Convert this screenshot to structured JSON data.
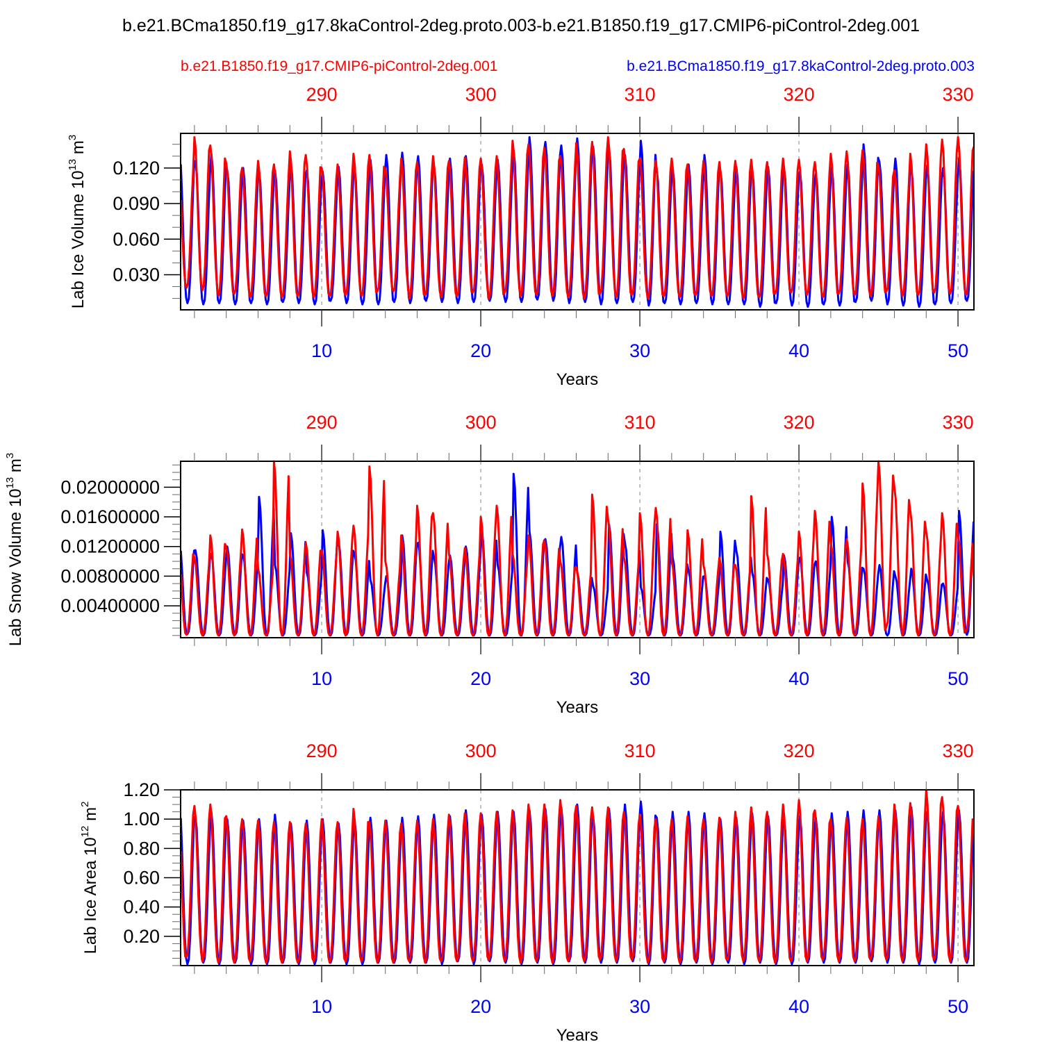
{
  "title": "b.e21.BCma1850.f19_g17.8kaControl-2deg.proto.003-b.e21.B1850.f19_g17.CMIP6-piControl-2deg.001",
  "legend": {
    "left": {
      "label": "b.e21.B1850.f19_g17.CMIP6-piControl-2deg.001",
      "color": "#ff0000"
    },
    "right": {
      "label": "b.e21.BCma1850.f19_g17.8kaControl-2deg.proto.003",
      "color": "#0000ff"
    }
  },
  "colors": {
    "case_red": "#ff0000",
    "case_blue": "#0000ff",
    "axis": "#000000",
    "grid": "#999999"
  },
  "chart_data": [
    {
      "type": "line",
      "title": "",
      "xlabel": "Years",
      "ylabel": "Lab Ice Volume 10^13 m^3",
      "ylabel_parts": {
        "main": "Lab Ice Volume 10",
        "exp": "13",
        "unit": " m",
        "unit_exp": "3"
      },
      "xlim": [
        1.13,
        51.0
      ],
      "ylim": [
        0.0004,
        0.1492
      ],
      "x_ticks_bottom": [
        10,
        20,
        30,
        40,
        50
      ],
      "x_ticks_top": [
        290,
        300,
        310,
        320,
        330
      ],
      "x_top_offset": 280,
      "y_ticks": [
        0.03,
        0.06,
        0.09,
        0.12
      ],
      "y_tick_labels": [
        "0.030",
        "0.060",
        "0.090",
        "0.120"
      ],
      "y_minor_step": 0.01,
      "grid": "dashed vertical at major x ticks",
      "series": [
        {
          "name": "b.e21.BCma1850.f19_g17.8kaControl-2deg.proto.003",
          "color": "#0000ff",
          "peaks": [
            0.134,
            0.126,
            0.132,
            0.118,
            0.12,
            0.117,
            0.118,
            0.124,
            0.118,
            0.117,
            0.121,
            0.12,
            0.127,
            0.131,
            0.133,
            0.13,
            0.121,
            0.128,
            0.13,
            0.123,
            0.127,
            0.135,
            0.146,
            0.142,
            0.139,
            0.145,
            0.138,
            0.136,
            0.131,
            0.143,
            0.118,
            0.12,
            0.123,
            0.131,
            0.118,
            0.121,
            0.118,
            0.121,
            0.12,
            0.117,
            0.115,
            0.12,
            0.123,
            0.14,
            0.125,
            0.128,
            0.12,
            0.122,
            0.12,
            0.128,
            0.135
          ],
          "troughs": [
            0.007,
            0.006,
            0.005,
            0.006,
            0.005,
            0.006,
            0.005,
            0.007,
            0.006,
            0.005,
            0.008,
            0.006,
            0.005,
            0.005,
            0.007,
            0.006,
            0.008,
            0.007,
            0.006,
            0.007,
            0.008,
            0.007,
            0.007,
            0.009,
            0.008,
            0.006,
            0.007,
            0.005,
            0.006,
            0.007,
            0.004,
            0.006,
            0.005,
            0.006,
            0.005,
            0.005,
            0.005,
            0.003,
            0.006,
            0.004,
            0.003,
            0.005,
            0.004,
            0.007,
            0.008,
            0.005,
            0.004,
            0.003,
            0.005,
            0.006,
            0.008
          ]
        },
        {
          "name": "b.e21.B1850.f19_g17.CMIP6-piControl-2deg.001",
          "color": "#ff0000",
          "peaks": [
            0.126,
            0.146,
            0.139,
            0.124,
            0.12,
            0.126,
            0.123,
            0.134,
            0.131,
            0.12,
            0.123,
            0.132,
            0.131,
            0.119,
            0.128,
            0.125,
            0.13,
            0.126,
            0.129,
            0.128,
            0.13,
            0.143,
            0.14,
            0.137,
            0.13,
            0.141,
            0.142,
            0.146,
            0.136,
            0.128,
            0.126,
            0.128,
            0.123,
            0.126,
            0.125,
            0.126,
            0.127,
            0.125,
            0.128,
            0.127,
            0.125,
            0.132,
            0.134,
            0.135,
            0.122,
            0.118,
            0.132,
            0.14,
            0.144,
            0.146,
            0.138
          ],
          "troughs": [
            0.02,
            0.019,
            0.017,
            0.012,
            0.014,
            0.011,
            0.012,
            0.011,
            0.012,
            0.011,
            0.012,
            0.013,
            0.012,
            0.016,
            0.016,
            0.01,
            0.013,
            0.011,
            0.012,
            0.015,
            0.01,
            0.015,
            0.012,
            0.013,
            0.012,
            0.011,
            0.01,
            0.014,
            0.011,
            0.013,
            0.01,
            0.012,
            0.011,
            0.013,
            0.012,
            0.012,
            0.01,
            0.011,
            0.014,
            0.015,
            0.013,
            0.011,
            0.014,
            0.013,
            0.012,
            0.016,
            0.012,
            0.013,
            0.015,
            0.014,
            0.013
          ]
        }
      ]
    },
    {
      "type": "line",
      "title": "",
      "xlabel": "Years",
      "ylabel": "Lab Snow Volume 10^13 m^3",
      "ylabel_parts": {
        "main": "Lab Snow Volume 10",
        "exp": "13",
        "unit": " m",
        "unit_exp": "3"
      },
      "xlim": [
        1.13,
        51.0
      ],
      "ylim": [
        -0.0003,
        0.0235
      ],
      "x_ticks_bottom": [
        10,
        20,
        30,
        40,
        50
      ],
      "x_ticks_top": [
        290,
        300,
        310,
        320,
        330
      ],
      "x_top_offset": 280,
      "y_ticks": [
        0.004,
        0.008,
        0.012,
        0.016,
        0.02
      ],
      "y_tick_labels": [
        "0.00400000",
        "0.00800000",
        "0.01200000",
        "0.01600000",
        "0.02000000"
      ],
      "y_minor_step": 0.001,
      "grid": "dashed vertical at major x ticks",
      "series": [
        {
          "name": "b.e21.BCma1850.f19_g17.8kaControl-2deg.proto.003",
          "color": "#0000ff",
          "peaks": [
            0.0125,
            0.0115,
            0.011,
            0.012,
            0.0108,
            0.0187,
            0.0095,
            0.0138,
            0.0085,
            0.0142,
            0.0125,
            0.011,
            0.0075,
            0.008,
            0.0135,
            0.0125,
            0.0105,
            0.0108,
            0.012,
            0.014,
            0.0095,
            0.0218,
            0.014,
            0.013,
            0.0133,
            0.0085,
            0.0067,
            0.015,
            0.0125,
            0.0065,
            0.015,
            0.0105,
            0.0087,
            0.008,
            0.014,
            0.0115,
            0.0085,
            0.0075,
            0.0108,
            0.0105,
            0.01,
            0.016,
            0.01,
            0.009,
            0.0095,
            0.008,
            0.009,
            0.0075,
            0.007,
            0.0168,
            0.006
          ],
          "troughs": [
            0.0,
            0.0002,
            0.0,
            0.0,
            0.0001,
            0.0,
            0.0,
            0.0,
            0.0,
            0.0,
            0.0,
            0.0001,
            0.0,
            0.0,
            0.0,
            0.0,
            0.0,
            0.0,
            0.0,
            0.0,
            0.0,
            0.0,
            0.0,
            0.0,
            0.0,
            0.0,
            0.0,
            0.0,
            0.0,
            0.0,
            0.0,
            0.0,
            0.0,
            0.0,
            0.0,
            0.0,
            0.0,
            0.0,
            0.0,
            0.0,
            0.0,
            0.0,
            0.0,
            0.0,
            0.0,
            0.0,
            0.0,
            0.0,
            0.0,
            0.0,
            0.0001
          ]
        },
        {
          "name": "b.e21.B1850.f19_g17.CMIP6-piControl-2deg.001",
          "color": "#ff0000",
          "peaks": [
            0.012,
            0.0105,
            0.0135,
            0.012,
            0.0143,
            0.009,
            0.0235,
            0.011,
            0.0125,
            0.0115,
            0.014,
            0.0148,
            0.0228,
            0.01,
            0.0135,
            0.0175,
            0.0165,
            0.011,
            0.0118,
            0.016,
            0.0175,
            0.011,
            0.0135,
            0.0128,
            0.01,
            0.0092,
            0.019,
            0.0157,
            0.0105,
            0.0165,
            0.0172,
            0.01,
            0.0142,
            0.0095,
            0.0105,
            0.0095,
            0.0188,
            0.011,
            0.011,
            0.014,
            0.0168,
            0.0125,
            0.013,
            0.0205,
            0.0235,
            0.02,
            0.0168,
            0.014,
            0.0165,
            0.0135,
            0.008
          ],
          "troughs": [
            0.0,
            0.0001,
            0.0,
            0.0,
            0.0,
            0.0,
            0.0,
            0.0,
            0.0,
            0.0,
            0.0,
            0.0,
            0.0,
            0.0,
            0.0,
            0.0,
            0.0,
            0.0,
            0.0,
            0.0,
            0.0,
            0.0,
            0.0,
            0.0,
            0.0,
            0.0,
            0.0,
            0.0,
            0.0,
            0.0,
            0.0,
            0.0,
            0.0,
            0.0,
            0.0,
            0.0,
            0.0,
            0.0,
            0.0,
            0.0,
            0.0,
            0.0,
            0.0,
            0.0,
            0.0,
            0.0012,
            0.0,
            0.0,
            0.0,
            0.0,
            0.0006
          ]
        }
      ]
    },
    {
      "type": "line",
      "title": "",
      "xlabel": "Years",
      "ylabel": "Lab Ice Area 10^12 m^2",
      "ylabel_parts": {
        "main": "Lab Ice Area 10",
        "exp": "12",
        "unit": " m",
        "unit_exp": "2"
      },
      "xlim": [
        1.13,
        51.0
      ],
      "ylim": [
        0.0,
        1.2
      ],
      "x_ticks_bottom": [
        10,
        20,
        30,
        40,
        50
      ],
      "x_ticks_top": [
        290,
        300,
        310,
        320,
        330
      ],
      "x_top_offset": 280,
      "y_ticks": [
        0.2,
        0.4,
        0.6,
        0.8,
        1.0,
        1.2
      ],
      "y_tick_labels": [
        "0.20",
        "0.40",
        "0.60",
        "0.80",
        "1.00",
        "1.20"
      ],
      "y_minor_step": 0.05,
      "grid": "dashed vertical at major x ticks",
      "series": [
        {
          "name": "b.e21.BCma1850.f19_g17.8kaControl-2deg.proto.003",
          "color": "#0000ff",
          "peaks": [
            1.1,
            1.02,
            1.05,
            1.0,
            0.99,
            1.0,
            1.03,
            0.97,
            0.99,
            1.0,
            0.97,
            1.0,
            1.01,
            0.99,
            1.01,
            1.02,
            1.03,
            1.02,
            1.06,
            1.03,
            1.05,
            1.05,
            1.06,
            1.07,
            1.08,
            1.1,
            1.02,
            1.07,
            1.1,
            1.12,
            1.01,
            1.05,
            1.05,
            1.04,
            1.0,
            1.01,
            1.04,
            1.02,
            1.0,
            1.02,
            1.01,
            1.04,
            1.05,
            1.06,
            1.06,
            1.06,
            1.08,
            1.05,
            1.05,
            1.06,
            0.85
          ],
          "troughs": [
            0.02,
            0.01,
            0.02,
            0.01,
            0.02,
            0.01,
            0.01,
            0.02,
            0.01,
            0.01,
            0.02,
            0.01,
            0.01,
            0.02,
            0.02,
            0.02,
            0.02,
            0.01,
            0.03,
            0.01,
            0.03,
            0.02,
            0.01,
            0.02,
            0.01,
            0.03,
            0.02,
            0.02,
            0.02,
            0.03,
            0.01,
            0.02,
            0.01,
            0.02,
            0.01,
            0.02,
            0.01,
            0.02,
            0.01,
            0.01,
            0.02,
            0.02,
            0.02,
            0.02,
            0.03,
            0.02,
            0.02,
            0.01,
            0.02,
            0.02,
            0.02
          ]
        },
        {
          "name": "b.e21.B1850.f19_g17.CMIP6-piControl-2deg.001",
          "color": "#ff0000",
          "peaks": [
            1.12,
            1.09,
            1.1,
            1.02,
            1.0,
            0.99,
            0.98,
            0.98,
            0.97,
            1.0,
            0.98,
            1.07,
            0.98,
            0.99,
            0.97,
            0.99,
            1.0,
            1.03,
            1.04,
            1.04,
            1.05,
            1.06,
            1.1,
            1.1,
            1.13,
            1.09,
            1.08,
            1.08,
            1.05,
            1.03,
            1.0,
            1.0,
            1.02,
            1.0,
            1.01,
            1.05,
            1.08,
            1.05,
            1.1,
            1.13,
            1.06,
            1.0,
            1.01,
            1.0,
            1.02,
            1.1,
            1.11,
            1.2,
            1.15,
            1.09,
            0.9
          ],
          "troughs": [
            0.03,
            0.06,
            0.03,
            0.02,
            0.02,
            0.03,
            0.02,
            0.02,
            0.02,
            0.03,
            0.02,
            0.03,
            0.03,
            0.02,
            0.02,
            0.03,
            0.02,
            0.03,
            0.03,
            0.03,
            0.04,
            0.03,
            0.02,
            0.03,
            0.02,
            0.03,
            0.03,
            0.04,
            0.03,
            0.04,
            0.02,
            0.03,
            0.02,
            0.03,
            0.02,
            0.04,
            0.03,
            0.03,
            0.02,
            0.03,
            0.03,
            0.04,
            0.03,
            0.03,
            0.04,
            0.04,
            0.03,
            0.03,
            0.04,
            0.03,
            0.03
          ]
        }
      ]
    }
  ]
}
